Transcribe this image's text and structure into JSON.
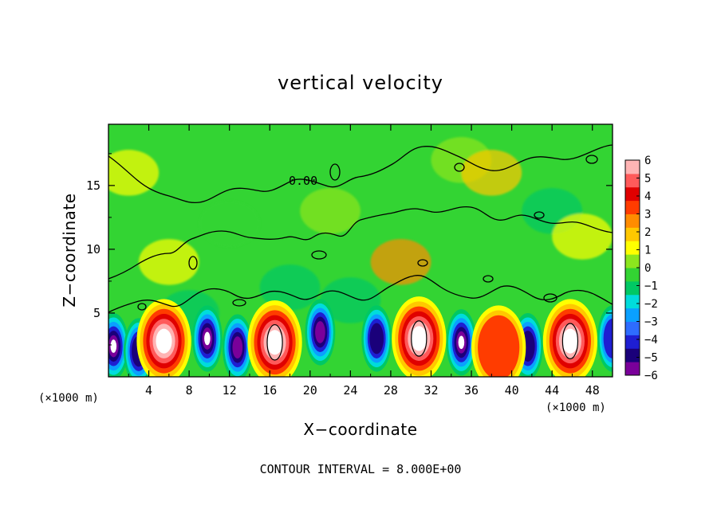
{
  "chart_data": {
    "type": "heatmap",
    "title": "vertical velocity",
    "xlabel": "X−coordinate",
    "ylabel": "Z−coordinate",
    "x_unit_left": "(×1000 m)",
    "x_unit_right": "(×1000 m)",
    "xlim": [
      0,
      50
    ],
    "ylim": [
      0,
      19.8
    ],
    "x_ticks": [
      4,
      8,
      12,
      16,
      20,
      24,
      28,
      32,
      36,
      40,
      44,
      48
    ],
    "y_ticks": [
      5,
      10,
      15
    ],
    "contour_label": "0.00",
    "footer": "CONTOUR INTERVAL = 8.000E+00",
    "colorbar": {
      "ticks": [
        "6",
        "5",
        "4",
        "3",
        "2",
        "1",
        "0",
        "−1",
        "−2",
        "−3",
        "−4",
        "−5",
        "−6"
      ],
      "range": [
        -6,
        6
      ],
      "colors": [
        "#7a009a",
        "#1a007a",
        "#1e1ed2",
        "#2e6cff",
        "#0aa0ff",
        "#00dcdc",
        "#00c864",
        "#33d433",
        "#8ce61e",
        "#ffff00",
        "#ffc800",
        "#ff8c00",
        "#ff3c00",
        "#e00000",
        "#ff5a5a",
        "#ffb4b4"
      ]
    },
    "updraft_cores": [
      {
        "x": 5.5,
        "z": 2.8,
        "w_max": 7
      },
      {
        "x": 16.5,
        "z": 2.7,
        "w_max": 9
      },
      {
        "x": 30.8,
        "z": 3.0,
        "w_max": 9
      },
      {
        "x": 45.8,
        "z": 2.8,
        "w_max": 8
      },
      {
        "x": 38.7,
        "z": 2.3,
        "w_max": 3
      }
    ],
    "downdraft_cores": [
      {
        "x": 0.5,
        "z": 2.4,
        "w_min": -7
      },
      {
        "x": 3.0,
        "z": 2.0,
        "w_min": -5
      },
      {
        "x": 9.8,
        "z": 3.0,
        "w_min": -7
      },
      {
        "x": 12.8,
        "z": 2.3,
        "w_min": -6
      },
      {
        "x": 21.0,
        "z": 3.5,
        "w_min": -6
      },
      {
        "x": 26.6,
        "z": 3.0,
        "w_min": -5
      },
      {
        "x": 35.0,
        "z": 2.7,
        "w_min": -7
      },
      {
        "x": 41.6,
        "z": 2.4,
        "w_min": -5
      },
      {
        "x": 50.0,
        "z": 3.0,
        "w_min": -4
      }
    ]
  }
}
